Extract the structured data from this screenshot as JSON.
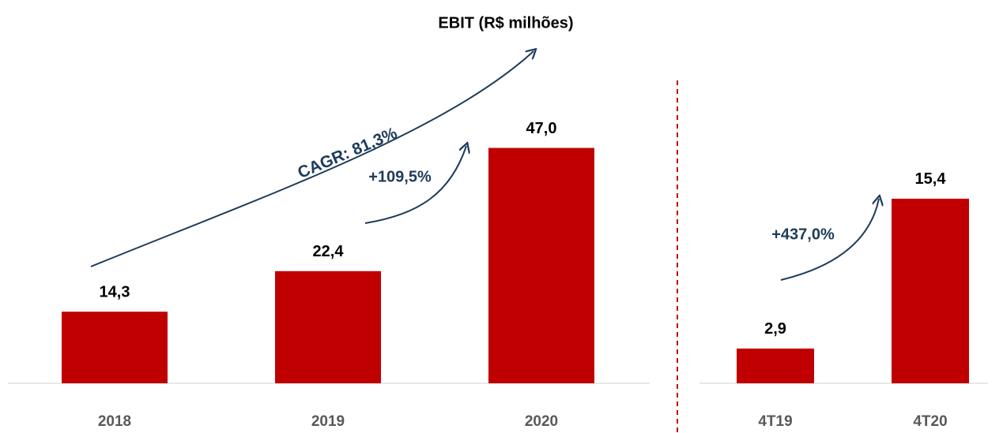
{
  "chart_data": [
    {
      "type": "bar",
      "title": "EBIT (R$ milhões)",
      "color": "#c00000",
      "categories": [
        "2018",
        "2019",
        "2020"
      ],
      "values": [
        14.3,
        22.4,
        47.0
      ],
      "value_labels": [
        "14,3",
        "22,4",
        "47,0"
      ],
      "annotations": [
        "CAGR: 81,3%",
        "+109,5%"
      ]
    },
    {
      "type": "bar",
      "color": "#c00000",
      "categories": [
        "4T19",
        "4T20"
      ],
      "values": [
        2.9,
        15.4
      ],
      "value_labels": [
        "2,9",
        "15,4"
      ],
      "annotations": [
        "+437,0%"
      ]
    }
  ]
}
